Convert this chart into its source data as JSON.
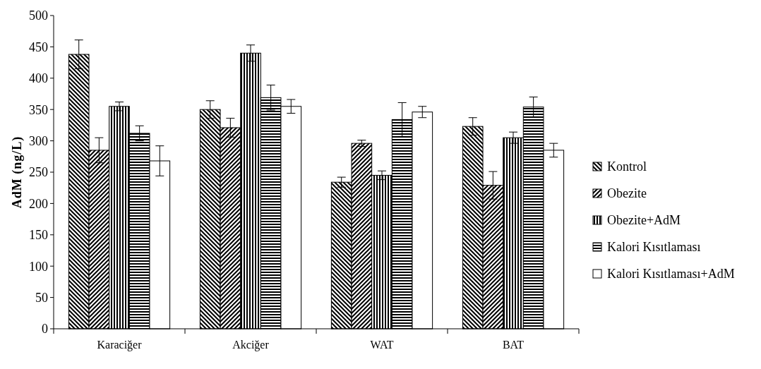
{
  "chart_data": {
    "type": "bar",
    "ylabel": "AdM (ng/L)",
    "categories": [
      "Karaciğer",
      "Akciğer",
      "WAT",
      "BAT"
    ],
    "ylim": [
      0,
      500
    ],
    "yticks": [
      0,
      50,
      100,
      150,
      200,
      250,
      300,
      350,
      400,
      450,
      500
    ],
    "legend": "right",
    "series": [
      {
        "name": "Kontrol",
        "color": "#000000",
        "values": [
          438,
          350,
          234,
          323
        ],
        "errors": [
          23,
          14,
          8,
          14
        ]
      },
      {
        "name": "Obezite",
        "color": "#000000",
        "values": [
          285,
          321,
          296,
          229
        ],
        "errors": [
          20,
          15,
          5,
          22
        ]
      },
      {
        "name": "Obezite+AdM",
        "color": "#000000",
        "values": [
          355,
          440,
          245,
          305
        ],
        "errors": [
          7,
          13,
          7,
          9
        ]
      },
      {
        "name": "Kalori Kısıtlaması",
        "color": "#000000",
        "values": [
          312,
          369,
          334,
          354
        ],
        "errors": [
          12,
          20,
          27,
          16
        ]
      },
      {
        "name": "Kalori Kısıtlaması+AdM",
        "color": "#ffffff",
        "values": [
          268,
          355,
          346,
          285
        ],
        "errors": [
          24,
          11,
          9,
          11
        ]
      }
    ]
  }
}
